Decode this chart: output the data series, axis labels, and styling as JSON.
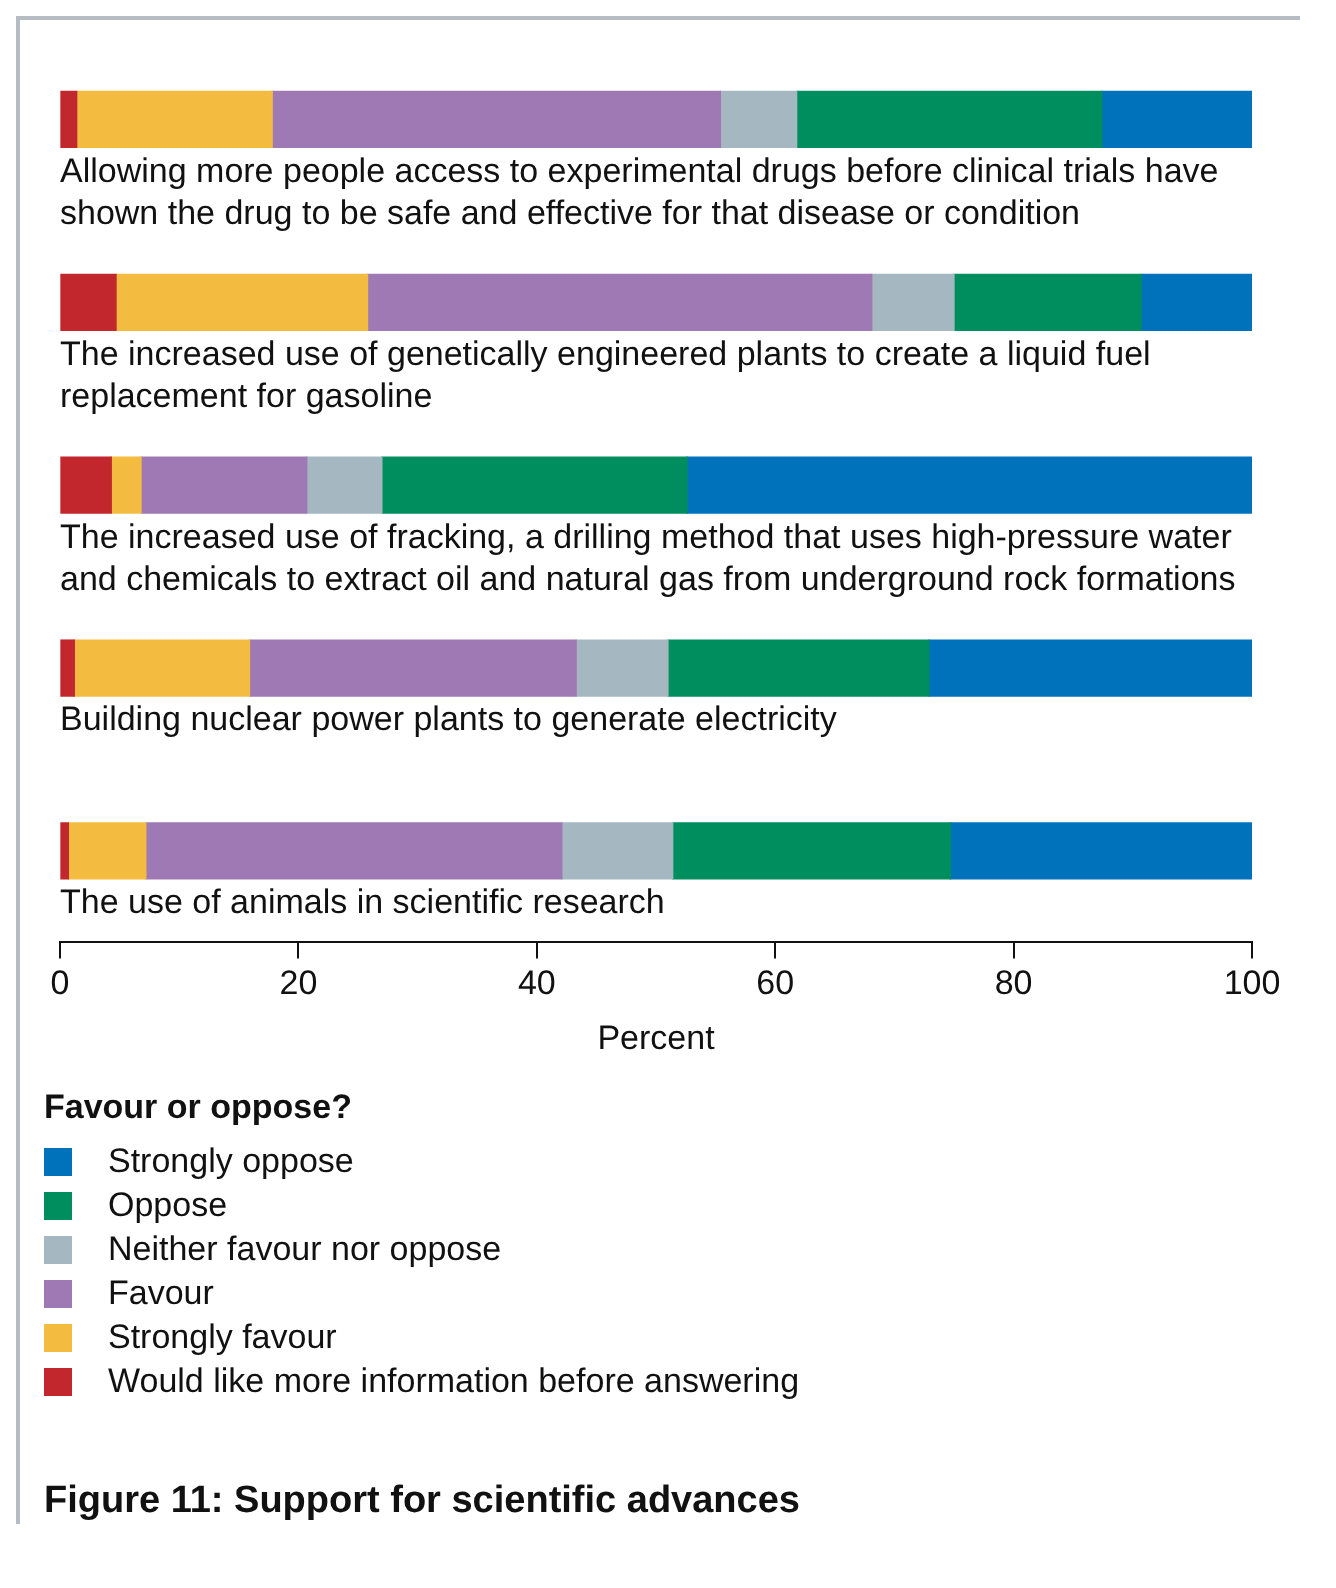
{
  "chart_data": {
    "type": "bar",
    "orientation": "horizontal",
    "stacked": true,
    "title": "Figure 11: Support for scientific advances",
    "xlabel": "Percent",
    "legend_title": "Favour or oppose?",
    "legend": "bottom",
    "grid": false,
    "categories": [
      "Allowing more people access to experimental drugs before clinical trials have shown the drug to be safe and effective for that disease or condition",
      "The increased use of genetically engineered plants to create a liquid fuel replacement for gasoline",
      "The increased use of fracking, a drilling method that uses high-pressure water and chemicals to extract oil and natural gas from underground rock formations",
      "Building nuclear power plants to generate electricity",
      "The use of animals in scientific research"
    ],
    "xlim": [
      0,
      100
    ],
    "xticks": [
      0,
      20,
      40,
      60,
      80,
      100
    ],
    "series": [
      {
        "name": "Would like more information before answering",
        "color": "#c1272d",
        "values": [
          1.4,
          4.7,
          4.3,
          1.2,
          0.7
        ]
      },
      {
        "name": "Strongly favour",
        "color": "#f3bc41",
        "values": [
          16.4,
          21.1,
          2.5,
          14.7,
          6.5
        ]
      },
      {
        "name": "Favour",
        "color": "#9f79b4",
        "values": [
          37.6,
          42.3,
          13.9,
          27.4,
          34.9
        ]
      },
      {
        "name": "Neither favour nor oppose",
        "color": "#a5b7c1",
        "values": [
          6.4,
          6.9,
          6.3,
          7.7,
          9.3
        ]
      },
      {
        "name": "Oppose",
        "color": "#008e5f",
        "values": [
          25.6,
          15.7,
          25.6,
          21.9,
          23.3
        ]
      },
      {
        "name": "Strongly oppose",
        "color": "#0072bc",
        "values": [
          12.6,
          9.3,
          47.4,
          27.1,
          25.3
        ]
      }
    ]
  }
}
